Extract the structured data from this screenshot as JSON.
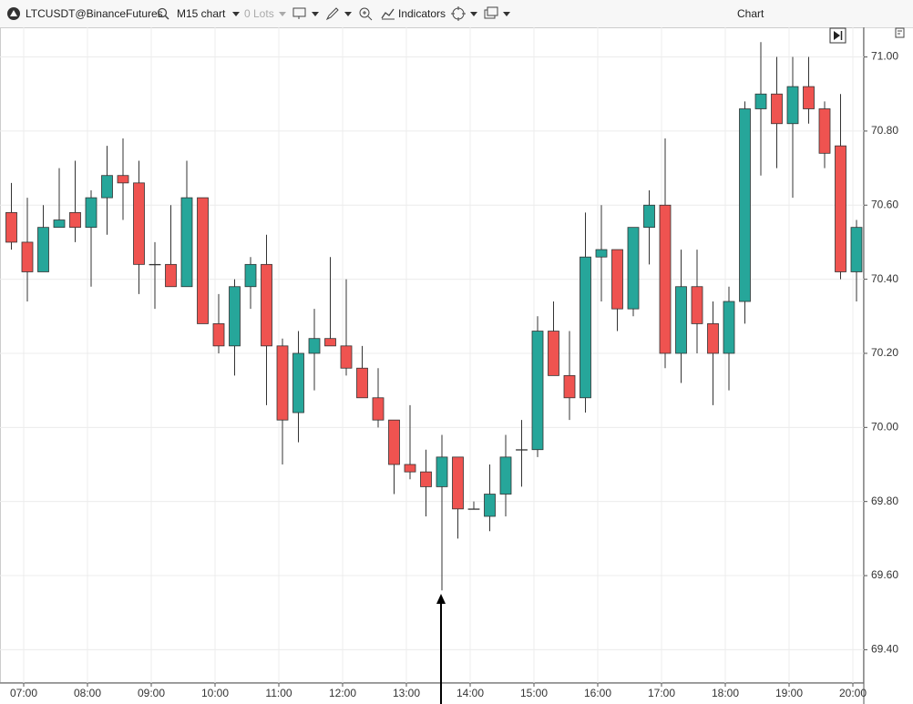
{
  "toolbar": {
    "symbol": "LTCUSDT@BinanceFutures",
    "timeframe": "M15 chart",
    "lots": "0 Lots",
    "indicators": "Indicators",
    "window_title": "Chart"
  },
  "chart_data": {
    "type": "candlestick",
    "categories": [
      null,
      "07:00",
      null,
      null,
      null,
      "08:00",
      null,
      null,
      null,
      "09:00",
      null,
      null,
      null,
      "10:00",
      null,
      null,
      null,
      "11:00",
      null,
      null,
      null,
      "12:00",
      null,
      null,
      null,
      "13:00",
      null,
      null,
      null,
      "14:00",
      null,
      null,
      null,
      "15:00",
      null,
      null,
      null,
      "16:00",
      null,
      null,
      null,
      "17:00",
      null,
      null,
      null,
      "18:00",
      null,
      null,
      null,
      "19:00",
      null,
      null,
      null,
      "20:00"
    ],
    "open": [
      70.58,
      70.5,
      70.42,
      70.54,
      70.58,
      70.54,
      70.62,
      70.68,
      70.66,
      70.44,
      70.44,
      70.38,
      70.62,
      70.28,
      70.22,
      70.38,
      70.44,
      70.22,
      70.04,
      70.2,
      70.24,
      70.22,
      70.16,
      70.08,
      70.02,
      69.9,
      69.88,
      69.84,
      69.92,
      69.78,
      69.76,
      69.82,
      69.94,
      69.94,
      70.26,
      70.14,
      70.08,
      70.46,
      70.48,
      70.32,
      70.54,
      70.6,
      70.2,
      70.38,
      70.28,
      70.2,
      70.34,
      70.86,
      70.9,
      70.82,
      70.92,
      70.86,
      70.76,
      70.42
    ],
    "high": [
      70.66,
      70.62,
      70.6,
      70.7,
      70.72,
      70.64,
      70.76,
      70.78,
      70.72,
      70.5,
      70.6,
      70.72,
      70.62,
      70.36,
      70.4,
      70.46,
      70.52,
      70.24,
      70.26,
      70.32,
      70.46,
      70.4,
      70.22,
      70.16,
      70.02,
      70.06,
      69.94,
      69.98,
      69.92,
      69.8,
      69.9,
      69.98,
      70.02,
      70.3,
      70.34,
      70.26,
      70.58,
      70.6,
      70.48,
      70.54,
      70.64,
      70.78,
      70.48,
      70.48,
      70.34,
      70.38,
      70.88,
      71.04,
      71.0,
      71.0,
      71.0,
      70.88,
      70.9,
      70.56
    ],
    "low": [
      70.48,
      70.34,
      70.42,
      70.54,
      70.5,
      70.38,
      70.52,
      70.56,
      70.36,
      70.32,
      70.38,
      70.38,
      70.28,
      70.2,
      70.14,
      70.32,
      70.06,
      69.9,
      69.96,
      70.1,
      70.22,
      70.14,
      70.08,
      70.0,
      69.82,
      69.86,
      69.76,
      69.56,
      69.7,
      69.78,
      69.72,
      69.76,
      69.84,
      69.92,
      70.14,
      70.02,
      70.04,
      70.34,
      70.26,
      70.3,
      70.44,
      70.16,
      70.12,
      70.2,
      70.06,
      70.1,
      70.28,
      70.68,
      70.7,
      70.62,
      70.82,
      70.7,
      70.4,
      70.34
    ],
    "close": [
      70.5,
      70.42,
      70.54,
      70.56,
      70.54,
      70.62,
      70.68,
      70.66,
      70.44,
      70.44,
      70.38,
      70.62,
      70.28,
      70.22,
      70.38,
      70.44,
      70.22,
      70.02,
      70.2,
      70.24,
      70.22,
      70.16,
      70.08,
      70.02,
      69.9,
      69.88,
      69.84,
      69.92,
      69.78,
      69.78,
      69.82,
      69.92,
      69.94,
      70.26,
      70.14,
      70.08,
      70.46,
      70.48,
      70.32,
      70.54,
      70.6,
      70.2,
      70.38,
      70.28,
      70.2,
      70.34,
      70.86,
      70.9,
      70.82,
      70.92,
      70.86,
      70.74,
      70.42,
      70.54
    ],
    "up_color": "#26a69a",
    "down_color": "#ef5350",
    "ylim": [
      69.31,
      71.08
    ],
    "yticks": [
      {
        "value": 69.4,
        "label": "69.40"
      },
      {
        "value": 69.6,
        "label": "69.60"
      },
      {
        "value": 69.8,
        "label": "69.80"
      },
      {
        "value": 70,
        "label": "70.00"
      },
      {
        "value": 70.2,
        "label": "70.20"
      },
      {
        "value": 70.4,
        "label": "70.40"
      },
      {
        "value": 70.6,
        "label": "70.60"
      },
      {
        "value": 70.8,
        "label": "70.80"
      },
      {
        "value": 71,
        "label": "71.00"
      }
    ],
    "grid": true
  }
}
